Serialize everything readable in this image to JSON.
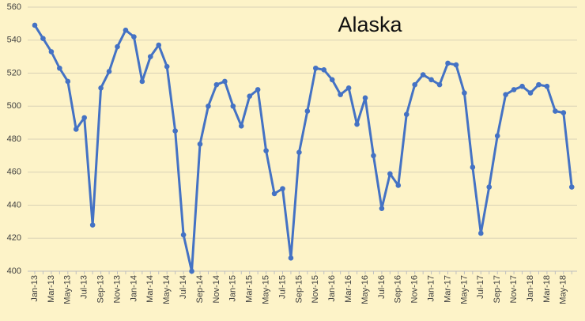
{
  "chart_data": {
    "type": "line",
    "title": "Alaska",
    "categories": [
      "Jan-13",
      null,
      "Mar-13",
      null,
      "May-13",
      null,
      "Jul-13",
      null,
      "Sep-13",
      null,
      "Nov-13",
      null,
      "Jan-14",
      null,
      "Mar-14",
      null,
      "May-14",
      null,
      "Jul-14",
      null,
      "Sep-14",
      null,
      "Nov-14",
      null,
      "Jan-15",
      null,
      "Mar-15",
      null,
      "May-15",
      null,
      "Jul-15",
      null,
      "Sep-15",
      null,
      "Nov-15",
      null,
      "Jan-16",
      null,
      "Mar-16",
      null,
      "May-16",
      null,
      "Jul-16",
      null,
      "Sep-16",
      null,
      "Nov-16",
      null,
      "Jan-17",
      null,
      "Mar-17",
      null,
      "May-17",
      null,
      "Jul-17",
      null,
      "Sep-17",
      null,
      "Nov-17",
      null,
      "Jan-18",
      null,
      "Mar-18",
      null,
      "May-18",
      null
    ],
    "values": [
      549,
      541,
      533,
      523,
      515,
      486,
      493,
      428,
      511,
      521,
      536,
      546,
      542,
      515,
      530,
      537,
      524,
      485,
      422,
      400,
      477,
      500,
      513,
      515,
      500,
      488,
      506,
      510,
      473,
      447,
      450,
      408,
      472,
      497,
      523,
      522,
      516,
      507,
      511,
      489,
      505,
      470,
      438,
      459,
      452,
      495,
      513,
      519,
      516,
      513,
      526,
      525,
      508,
      463,
      423,
      451,
      482,
      507,
      510,
      512,
      508,
      513,
      512,
      497,
      496,
      451
    ],
    "color": "#4472c4",
    "ylim": [
      400,
      560
    ],
    "yticks": [
      400,
      420,
      440,
      460,
      480,
      500,
      520,
      540,
      560
    ],
    "grid": true
  }
}
